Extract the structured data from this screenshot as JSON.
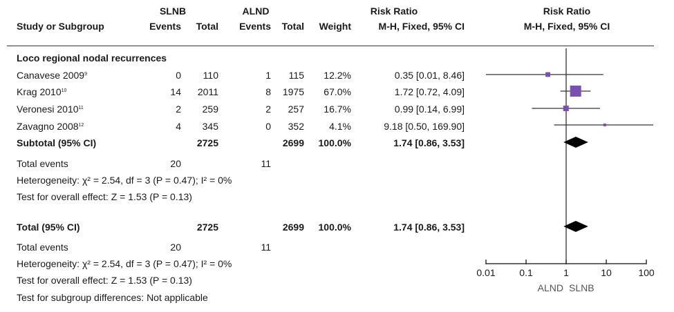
{
  "header": {
    "group1": "SLNB",
    "group2": "ALND",
    "effect_title": "Risk Ratio",
    "plot_title": "Risk Ratio",
    "col_study": "Study or Subgroup",
    "col_events1": "Events",
    "col_total1": "Total",
    "col_events2": "Events",
    "col_total2": "Total",
    "col_weight": "Weight",
    "col_method": "M-H, Fixed, 95% CI",
    "plot_method": "M-H, Fixed, 95% CI"
  },
  "subgroup_title": "Loco regional nodal recurrences",
  "subtotal": {
    "label": "Subtotal (95% CI)",
    "total1": "2725",
    "total2": "2699",
    "weight": "100.0%",
    "ci": "1.74 [0.86, 3.53]"
  },
  "subgroup_events": {
    "label": "Total events",
    "events1": "20",
    "events2": "11"
  },
  "subgroup_heterogeneity": "Heterogeneity: χ² = 2.54, df = 3 (P = 0.47); I² = 0%",
  "subgroup_overall": "Test for overall effect: Z = 1.53 (P = 0.13)",
  "total": {
    "label": "Total (95% CI)",
    "total1": "2725",
    "total2": "2699",
    "weight": "100.0%",
    "ci": "1.74 [0.86, 3.53]"
  },
  "total_events": {
    "label": "Total events",
    "events1": "20",
    "events2": "11"
  },
  "total_heterogeneity": "Heterogeneity: χ² = 2.54, df = 3 (P = 0.47); I² = 0%",
  "total_overall": "Test for overall effect: Z = 1.53 (P = 0.13)",
  "subgroup_differences": "Test for subgroup differences: Not applicable",
  "colors": {
    "marker": "#7b4fb0",
    "diamond": "#000000",
    "line": "#333333"
  },
  "chart_data": {
    "type": "forest",
    "x_scale": "log",
    "xlim": [
      0.01,
      100
    ],
    "x_ticks": [
      0.01,
      0.1,
      1,
      10,
      100
    ],
    "x_tick_labels": [
      "0.01",
      "0.1",
      "1",
      "10",
      "100"
    ],
    "favours_left": "ALND",
    "favours_right": "SLNB",
    "studies": [
      {
        "name": "Canavese 2009",
        "ref": "9",
        "events1": 0,
        "total1": 110,
        "events2": 1,
        "total2": 115,
        "weight": "12.2%",
        "rr": 0.35,
        "lo": 0.01,
        "hi": 8.46,
        "ci_text": "0.35 [0.01, 8.46]"
      },
      {
        "name": "Krag 2010",
        "ref": "10",
        "events1": 14,
        "total1": 2011,
        "events2": 8,
        "total2": 1975,
        "weight": "67.0%",
        "rr": 1.72,
        "lo": 0.72,
        "hi": 4.09,
        "ci_text": "1.72 [0.72, 4.09]"
      },
      {
        "name": "Veronesi 2010",
        "ref": "11",
        "events1": 2,
        "total1": 259,
        "events2": 2,
        "total2": 257,
        "weight": "16.7%",
        "rr": 0.99,
        "lo": 0.14,
        "hi": 6.99,
        "ci_text": "0.99 [0.14, 6.99]"
      },
      {
        "name": "Zavagno 2008",
        "ref": "12",
        "events1": 4,
        "total1": 345,
        "events2": 0,
        "total2": 352,
        "weight": "4.1%",
        "rr": 9.18,
        "lo": 0.5,
        "hi": 169.9,
        "ci_text": "9.18 [0.50, 169.90]"
      }
    ],
    "pooled": [
      {
        "label": "Subtotal",
        "rr": 1.74,
        "lo": 0.86,
        "hi": 3.53
      },
      {
        "label": "Total",
        "rr": 1.74,
        "lo": 0.86,
        "hi": 3.53
      }
    ]
  }
}
